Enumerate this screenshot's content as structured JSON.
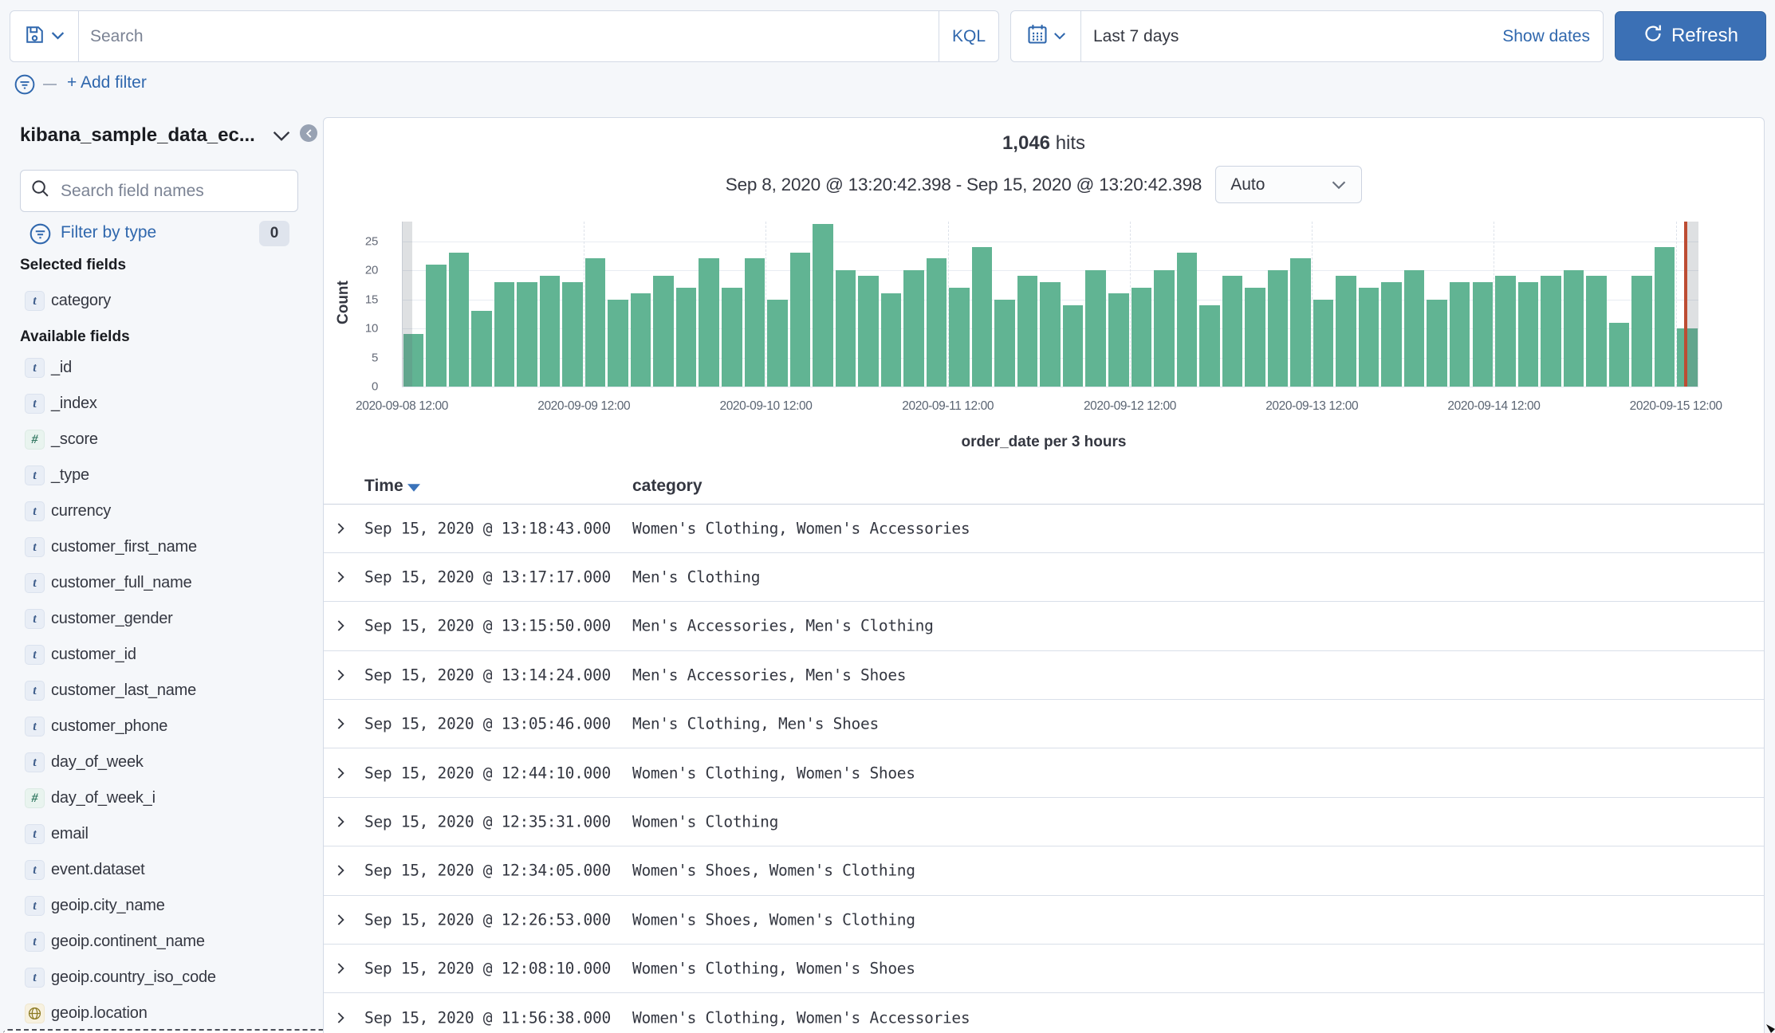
{
  "topbar": {
    "search_placeholder": "Search",
    "kql_label": "KQL",
    "time_value": "Last 7 days",
    "show_dates_label": "Show dates",
    "refresh_label": "Refresh"
  },
  "filter_bar": {
    "add_filter_label": "+ Add filter"
  },
  "sidebar": {
    "index_pattern": "kibana_sample_data_ec...",
    "field_search_placeholder": "Search field names",
    "filter_by_type_label": "Filter by type",
    "filter_by_type_count": "0",
    "selected_heading": "Selected fields",
    "available_heading": "Available fields",
    "selected_fields": [
      {
        "type": "t",
        "name": "category"
      }
    ],
    "available_fields": [
      {
        "type": "t",
        "name": "_id"
      },
      {
        "type": "t",
        "name": "_index"
      },
      {
        "type": "n",
        "name": "_score"
      },
      {
        "type": "t",
        "name": "_type"
      },
      {
        "type": "t",
        "name": "currency"
      },
      {
        "type": "t",
        "name": "customer_first_name"
      },
      {
        "type": "t",
        "name": "customer_full_name"
      },
      {
        "type": "t",
        "name": "customer_gender"
      },
      {
        "type": "t",
        "name": "customer_id"
      },
      {
        "type": "t",
        "name": "customer_last_name"
      },
      {
        "type": "t",
        "name": "customer_phone"
      },
      {
        "type": "t",
        "name": "day_of_week"
      },
      {
        "type": "n",
        "name": "day_of_week_i"
      },
      {
        "type": "t",
        "name": "email"
      },
      {
        "type": "t",
        "name": "event.dataset"
      },
      {
        "type": "t",
        "name": "geoip.city_name"
      },
      {
        "type": "t",
        "name": "geoip.continent_name"
      },
      {
        "type": "t",
        "name": "geoip.country_iso_code"
      },
      {
        "type": "g",
        "name": "geoip.location"
      }
    ]
  },
  "histogram": {
    "hits_count": "1,046",
    "hits_label": "hits",
    "range_label": "Sep 8, 2020 @ 13:20:42.398 - Sep 15, 2020 @ 13:20:42.398",
    "interval_value": "Auto",
    "ylabel": "Count",
    "xlabel": "order_date per 3 hours"
  },
  "chart_data": {
    "type": "bar",
    "title": "1,046 hits",
    "xlabel": "order_date per 3 hours",
    "ylabel": "Count",
    "ylim": [
      0,
      28.4
    ],
    "y_ticks": [
      0,
      5,
      10,
      15,
      20,
      25
    ],
    "x_tick_labels": [
      "2020-09-08 12:00",
      "2020-09-09 12:00",
      "2020-09-10 12:00",
      "2020-09-11 12:00",
      "2020-09-12 12:00",
      "2020-09-13 12:00",
      "2020-09-14 12:00",
      "2020-09-15 12:00"
    ],
    "x_ticks_every_n_bars": 8,
    "bucket_hours": 3,
    "values": [
      9,
      21,
      23,
      13,
      18,
      18,
      19,
      18,
      22,
      15,
      16,
      19,
      17,
      22,
      17,
      22,
      15,
      23,
      28,
      20,
      19,
      16,
      20,
      22,
      17,
      24,
      15,
      19,
      18,
      14,
      20,
      16,
      17,
      20,
      23,
      14,
      19,
      17,
      20,
      22,
      15,
      19,
      17,
      18,
      20,
      15,
      18,
      18,
      19,
      18,
      19,
      20,
      19,
      11,
      19,
      24,
      10
    ],
    "bar_color": "#61b493",
    "partial_bucket_fraction": 0.448,
    "now_marker_color": "#bd4c33",
    "grid": true,
    "legend": false
  },
  "table": {
    "time_header": "Time",
    "category_header": "category",
    "rows": [
      {
        "time": "Sep 15, 2020 @ 13:18:43.000",
        "category": "Women's Clothing, Women's Accessories"
      },
      {
        "time": "Sep 15, 2020 @ 13:17:17.000",
        "category": "Men's Clothing"
      },
      {
        "time": "Sep 15, 2020 @ 13:15:50.000",
        "category": "Men's Accessories, Men's Clothing"
      },
      {
        "time": "Sep 15, 2020 @ 13:14:24.000",
        "category": "Men's Accessories, Men's Shoes"
      },
      {
        "time": "Sep 15, 2020 @ 13:05:46.000",
        "category": "Men's Clothing, Men's Shoes"
      },
      {
        "time": "Sep 15, 2020 @ 12:44:10.000",
        "category": "Women's Clothing, Women's Shoes"
      },
      {
        "time": "Sep 15, 2020 @ 12:35:31.000",
        "category": "Women's Clothing"
      },
      {
        "time": "Sep 15, 2020 @ 12:34:05.000",
        "category": "Women's Shoes, Women's Clothing"
      },
      {
        "time": "Sep 15, 2020 @ 12:26:53.000",
        "category": "Women's Shoes, Women's Clothing"
      },
      {
        "time": "Sep 15, 2020 @ 12:08:10.000",
        "category": "Women's Clothing, Women's Shoes"
      },
      {
        "time": "Sep 15, 2020 @ 11:56:38.000",
        "category": "Women's Clothing, Women's Accessories"
      }
    ]
  }
}
